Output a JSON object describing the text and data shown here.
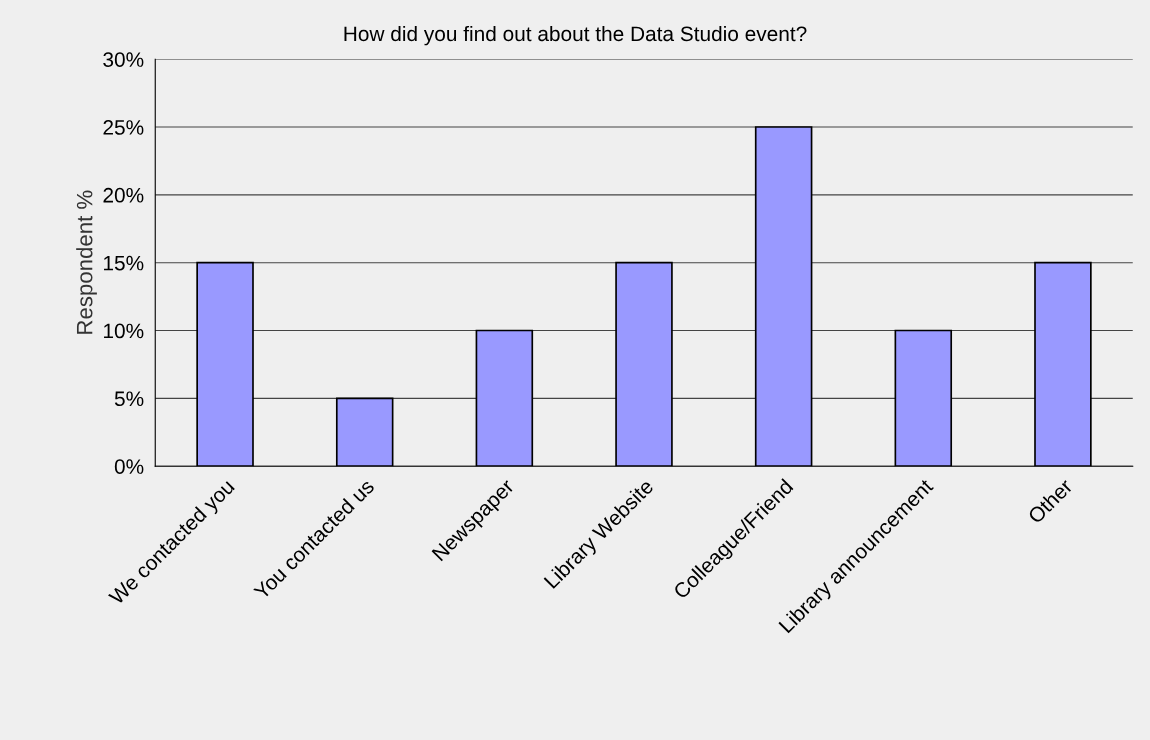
{
  "chart_data": {
    "type": "bar",
    "title": "How did you find out about the Data Studio event?",
    "ylabel": "Respondent %",
    "categories": [
      "We contacted you",
      "You contacted us",
      "Newspaper",
      "Library Website",
      "Colleague/Friend",
      "Library announcement",
      "Other"
    ],
    "values": [
      15,
      5,
      10,
      15,
      25,
      10,
      15
    ],
    "color": "#9999ff",
    "ylim": [
      0,
      30
    ],
    "yticks": [
      {
        "value": 0,
        "label": "0%"
      },
      {
        "value": 5,
        "label": "5%"
      },
      {
        "value": 10,
        "label": "10%"
      },
      {
        "value": 15,
        "label": "15%"
      },
      {
        "value": 20,
        "label": "20%"
      },
      {
        "value": 25,
        "label": "25%"
      },
      {
        "value": 30,
        "label": "30%"
      }
    ],
    "grid": "y",
    "legend": false
  }
}
